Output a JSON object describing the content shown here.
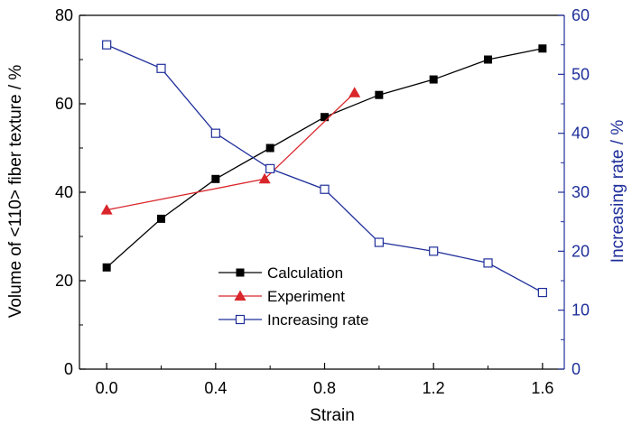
{
  "chart_data": {
    "type": "line",
    "title": "",
    "xlabel": "Strain",
    "ylabel_left": "Volume of <110> fiber texture / %",
    "ylabel_right": "Increasing rate / %",
    "xlim": [
      -0.1,
      1.68
    ],
    "ylim_left": [
      0,
      80
    ],
    "ylim_right": [
      0,
      60
    ],
    "x_ticks": [
      0.0,
      0.4,
      0.8,
      1.2,
      1.6
    ],
    "x_tick_labels": [
      "0.0",
      "0.4",
      "0.8",
      "1.2",
      "1.6"
    ],
    "y_left_ticks": [
      0,
      20,
      40,
      60,
      80
    ],
    "y_left_tick_labels": [
      "0",
      "20",
      "40",
      "60",
      "80"
    ],
    "y_right_ticks": [
      0,
      10,
      20,
      30,
      40,
      50,
      60
    ],
    "y_right_tick_labels": [
      "0",
      "10",
      "20",
      "30",
      "40",
      "50",
      "60"
    ],
    "grid": false,
    "legend_position": "lower-center",
    "series": [
      {
        "name": "Calculation",
        "axis": "left",
        "color": "#000000",
        "marker": "filled-square",
        "x": [
          0.0,
          0.2,
          0.4,
          0.6,
          0.8,
          1.0,
          1.2,
          1.4,
          1.6
        ],
        "y": [
          23,
          34,
          43,
          50,
          57,
          62,
          65.5,
          70,
          72.5
        ]
      },
      {
        "name": "Experiment",
        "axis": "left",
        "color": "#d9262b",
        "marker": "filled-triangle",
        "x": [
          0.0,
          0.58,
          0.91
        ],
        "y": [
          36,
          43,
          62.5
        ]
      },
      {
        "name": "Increasing rate",
        "axis": "right",
        "color": "#1f2f9a",
        "marker": "open-square",
        "x": [
          0.0,
          0.2,
          0.4,
          0.6,
          0.8,
          1.0,
          1.2,
          1.4,
          1.6
        ],
        "y": [
          55,
          51,
          40,
          34,
          30.5,
          21.5,
          20,
          18,
          13
        ]
      }
    ]
  }
}
